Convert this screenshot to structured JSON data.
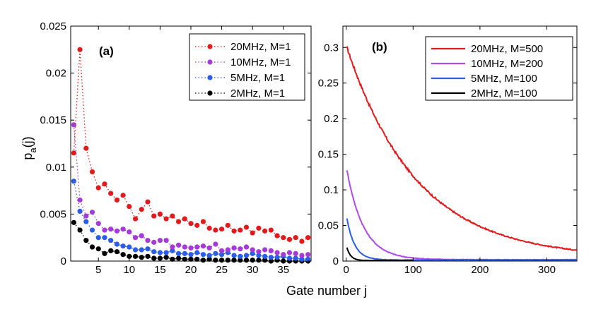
{
  "figure": {
    "xlabel": "Gate number j",
    "ylabel_main": "p",
    "ylabel_sub": "a",
    "ylabel_tail": "(j)"
  },
  "chart_data": [
    {
      "type": "line",
      "panel_label": "(a)",
      "style": "dotted-with-markers",
      "xlim": [
        0.5,
        39.5
      ],
      "ylim": [
        0,
        0.025
      ],
      "xticks": [
        5,
        10,
        15,
        20,
        25,
        30,
        35
      ],
      "xtick_labels": [
        "5",
        "10",
        "15",
        "20",
        "25",
        "30",
        "35"
      ],
      "yticks": [
        0,
        0.005,
        0.01,
        0.015,
        0.02,
        0.025
      ],
      "ytick_labels": [
        "0",
        "0.005",
        "0.01",
        "0.015",
        "0.02",
        "0.025"
      ],
      "legend_position": "top-right",
      "x": [
        1,
        2,
        3,
        4,
        5,
        6,
        7,
        8,
        9,
        10,
        11,
        12,
        13,
        14,
        15,
        16,
        17,
        18,
        19,
        20,
        21,
        22,
        23,
        24,
        25,
        26,
        27,
        28,
        29,
        30,
        31,
        32,
        33,
        34,
        35,
        36,
        37,
        38,
        39
      ],
      "series": [
        {
          "name": "20MHz, M=1",
          "color": "#e31a1c",
          "values": [
            0.0115,
            0.0225,
            0.012,
            0.0095,
            0.0078,
            0.0082,
            0.0072,
            0.0065,
            0.007,
            0.0058,
            0.0045,
            0.0055,
            0.0063,
            0.0048,
            0.005,
            0.0045,
            0.0048,
            0.0042,
            0.0045,
            0.004,
            0.0038,
            0.0042,
            0.0035,
            0.0033,
            0.0034,
            0.0038,
            0.0032,
            0.0033,
            0.0036,
            0.003,
            0.0035,
            0.0032,
            0.0033,
            0.0027,
            0.0025,
            0.0023,
            0.0025,
            0.0021,
            0.0025
          ]
        },
        {
          "name": "10MHz, M=1",
          "color": "#a63ad9",
          "values": [
            0.0145,
            0.0065,
            0.0048,
            0.0052,
            0.004,
            0.0033,
            0.0034,
            0.0032,
            0.0034,
            0.0031,
            0.0025,
            0.0027,
            0.0022,
            0.002,
            0.0022,
            0.0022,
            0.0015,
            0.0017,
            0.0015,
            0.0014,
            0.0015,
            0.0016,
            0.0014,
            0.0018,
            0.0011,
            0.0012,
            0.0014,
            0.0013,
            0.0015,
            0.0012,
            0.001,
            0.0012,
            0.0011,
            0.0009,
            0.0007,
            0.0009,
            0.0008,
            0.0006,
            0.0007
          ]
        },
        {
          "name": "5MHz, M=1",
          "color": "#2a5de8",
          "values": [
            0.0085,
            0.0053,
            0.0042,
            0.0033,
            0.0025,
            0.0025,
            0.0022,
            0.0018,
            0.0016,
            0.0015,
            0.0012,
            0.0012,
            0.0013,
            0.001,
            0.0009,
            0.0009,
            0.0011,
            0.0008,
            0.0008,
            0.0007,
            0.0009,
            0.0007,
            0.0006,
            0.0008,
            0.0007,
            0.0009,
            0.0006,
            0.0005,
            0.0006,
            0.0008,
            0.0006,
            0.0005,
            0.0004,
            0.0004,
            0.0005,
            0.0003,
            0.0003,
            0.0002,
            0.0002
          ]
        },
        {
          "name": "2MHz, M=1",
          "color": "#000000",
          "values": [
            0.0041,
            0.0033,
            0.0022,
            0.0015,
            0.0013,
            0.0008,
            0.0011,
            0.001,
            0.0007,
            0.0005,
            0.0005,
            0.0004,
            0.0005,
            0.0003,
            0.0003,
            0.0004,
            0.0002,
            0.0003,
            0.0002,
            0.0002,
            0.0002,
            0.0001,
            0.0002,
            0.0001,
            0.0001,
            0.0001,
            0.0001,
            0.0001,
            0.0001,
            0.0001,
            0.0001,
            0.0001,
            0.0,
            0.0001,
            0.0,
            0.0,
            0.0,
            0.0,
            0.0
          ]
        }
      ]
    },
    {
      "type": "line",
      "panel_label": "(b)",
      "style": "solid",
      "xlim": [
        -5,
        345
      ],
      "ylim": [
        0,
        0.33
      ],
      "xticks": [
        0,
        100,
        200,
        300
      ],
      "xtick_labels": [
        "0",
        "100",
        "200",
        "300"
      ],
      "yticks": [
        0,
        0.05,
        0.1,
        0.15,
        0.2,
        0.25,
        0.3
      ],
      "ytick_labels": [
        "0",
        "0.05",
        "0.1",
        "0.15",
        "0.2",
        "0.25",
        "0.3"
      ],
      "legend_position": "top-right",
      "series": [
        {
          "name": "20MHz, M=500",
          "color": "#e31a1c",
          "x_start": 1,
          "x_end": 345,
          "y0": 0.3,
          "decay": 0.0095,
          "floor": 0.004,
          "noise": 0.004
        },
        {
          "name": "10MHz, M=200",
          "color": "#b04ae8",
          "x_start": 1,
          "x_end": 345,
          "y0": 0.128,
          "decay": 0.04,
          "floor": 0.002,
          "noise": 0.0015
        },
        {
          "name": "5MHz, M=100",
          "color": "#2a5de8",
          "x_start": 1,
          "x_end": 345,
          "y0": 0.06,
          "decay": 0.085,
          "floor": 0.0015,
          "noise": 0.0008
        },
        {
          "name": "2MHz, M=100",
          "color": "#000000",
          "x_start": 1,
          "x_end": 100,
          "y0": 0.019,
          "decay": 0.17,
          "floor": 0.0008,
          "noise": 0.0004
        }
      ]
    }
  ]
}
